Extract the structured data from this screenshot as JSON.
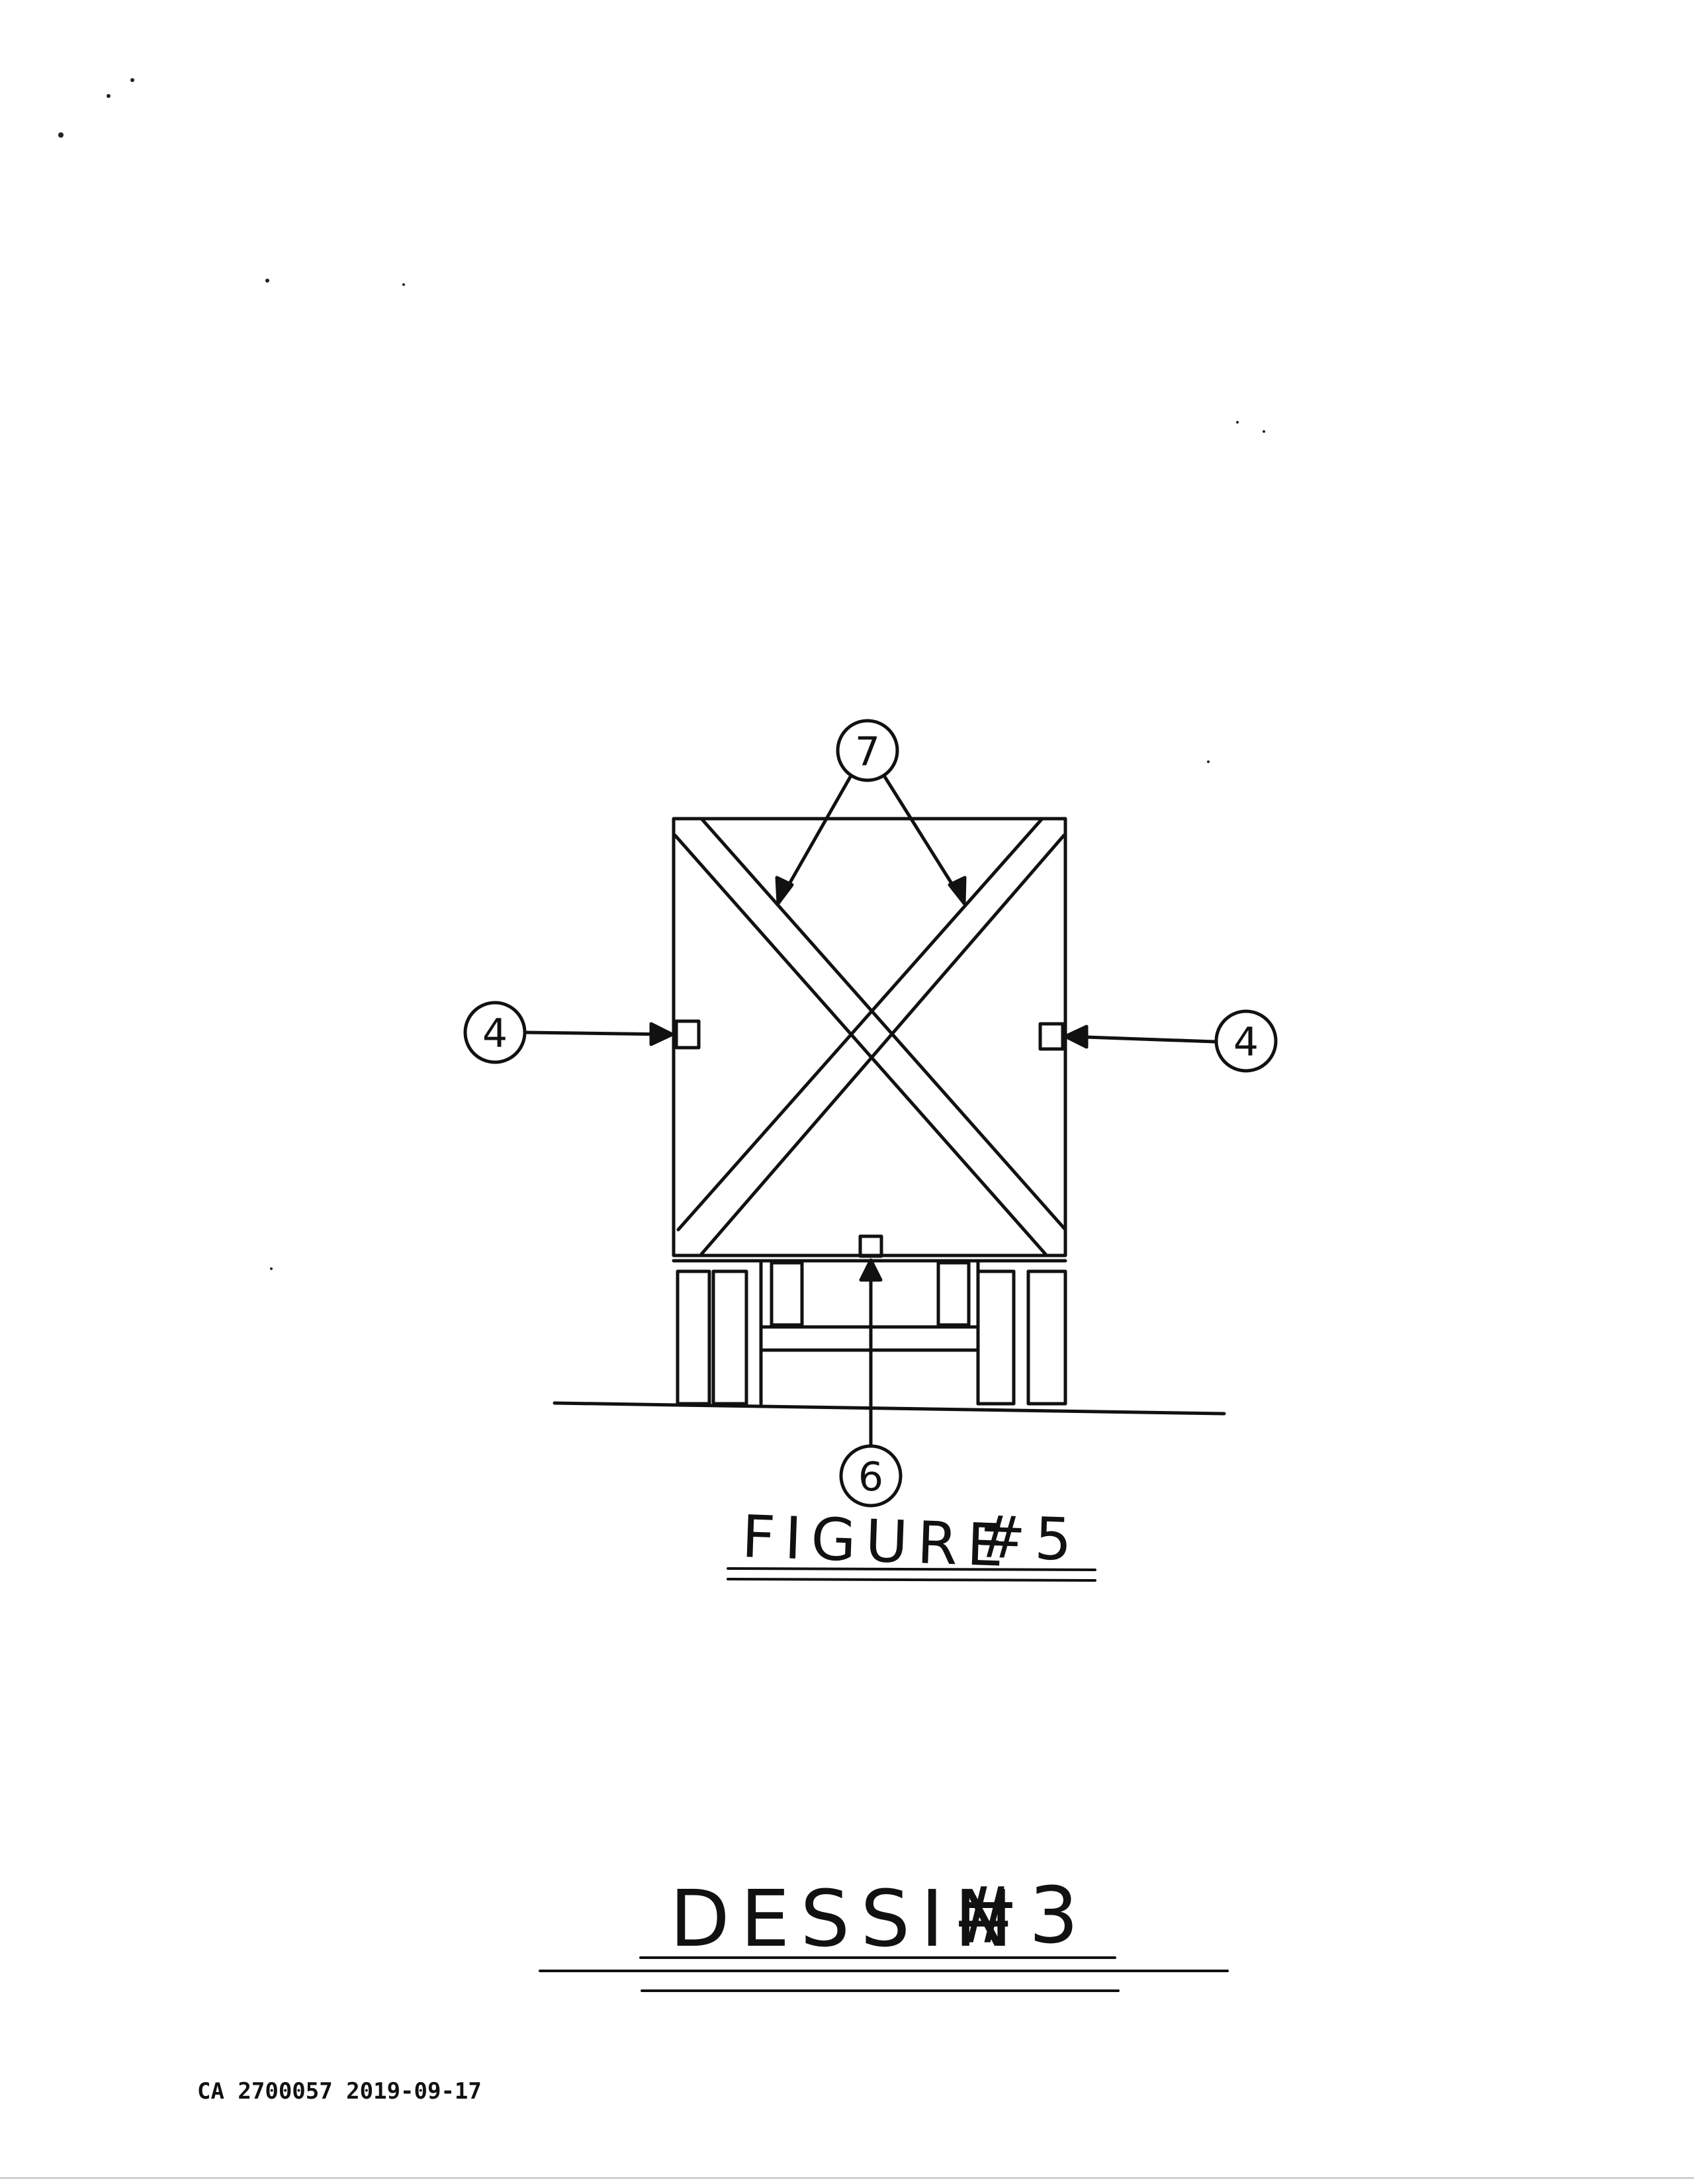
{
  "callouts": {
    "seven": "7",
    "four_left": "4",
    "four_right": "4",
    "six": "6"
  },
  "captions": {
    "figure": "FIGURE",
    "figure_num": "#5",
    "dessin": "DESSIN",
    "dessin_num": "#3"
  },
  "footer": {
    "document_number": "CA 2700057 2019-09-17"
  }
}
